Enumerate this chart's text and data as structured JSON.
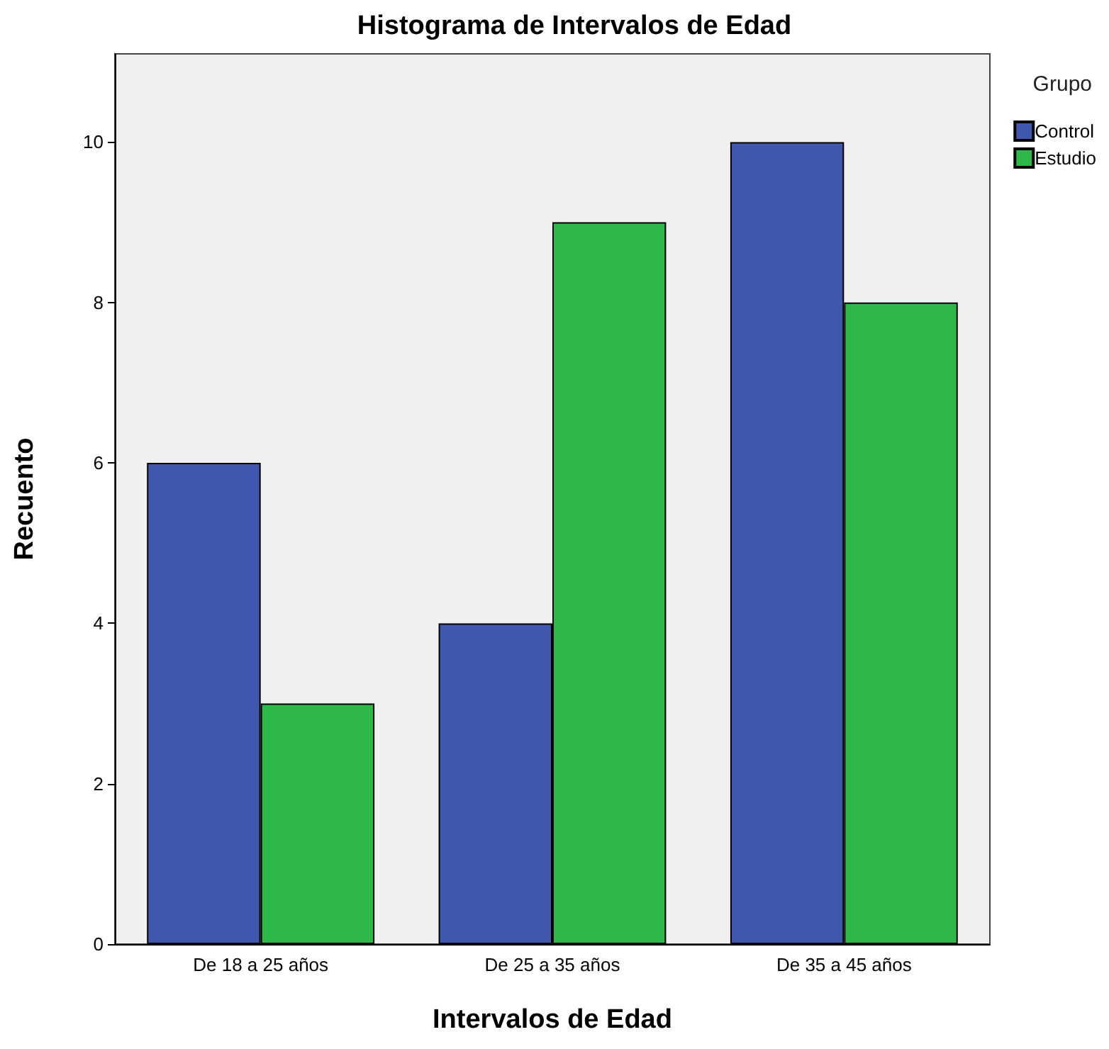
{
  "chart_data": {
    "type": "bar",
    "title": "Histograma de Intervalos de Edad",
    "xlabel": "Intervalos de Edad",
    "ylabel": "Recuento",
    "legend_title": "Grupo",
    "categories": [
      "De 18 a 25 años",
      "De 25 a 35 años",
      "De 35 a 45 años"
    ],
    "series": [
      {
        "name": "Control",
        "color": "#3f58ae",
        "values": [
          6,
          4,
          10
        ]
      },
      {
        "name": "Estudio",
        "color": "#2fb84a",
        "values": [
          3,
          9,
          8
        ]
      }
    ],
    "ylim": [
      0,
      11.1
    ],
    "yticks": [
      0,
      2,
      4,
      6,
      8,
      10
    ],
    "grid": false,
    "legend": "top right"
  }
}
